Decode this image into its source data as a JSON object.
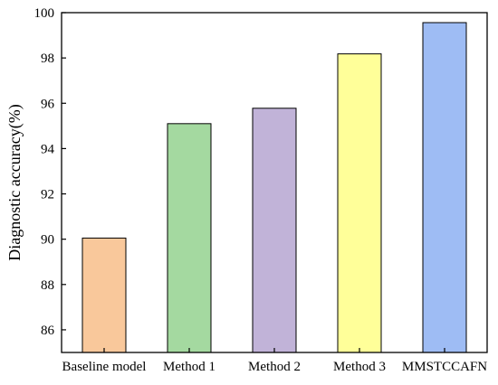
{
  "chart_data": {
    "type": "bar",
    "title": "",
    "xlabel": "",
    "ylabel": "Diagnostic accuracy(%)",
    "categories": [
      "Baseline model",
      "Method 1",
      "Method 2",
      "Method 3",
      "MMSTCCAFN"
    ],
    "values": [
      90.05,
      95.1,
      95.78,
      98.18,
      99.56
    ],
    "bar_colors": [
      "#f9c89b",
      "#a4d9a0",
      "#c1b3d8",
      "#ffff99",
      "#9ebcf4"
    ],
    "ylim": [
      85,
      100
    ],
    "yticks": [
      86,
      88,
      90,
      92,
      94,
      96,
      98,
      100
    ],
    "grid": false,
    "legend": "none"
  }
}
